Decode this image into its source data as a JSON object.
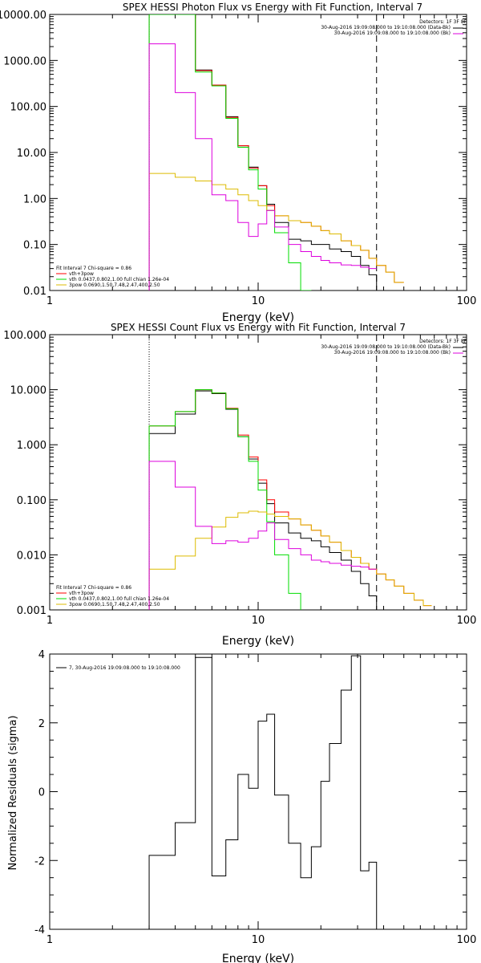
{
  "chart_data": [
    {
      "type": "line",
      "title": "SPEX HESSI Photon Flux vs Energy with Fit Function, Interval 7",
      "xlabel": "Energy (keV)",
      "ylabel": "",
      "xscale": "log",
      "yscale": "log",
      "xlim": [
        1,
        100
      ],
      "ylim": [
        0.01,
        10000
      ],
      "x_ticks": [
        "1",
        "10",
        "100"
      ],
      "y_ticks": [
        "0.01",
        "0.10",
        "1.00",
        "10.00",
        "100.00",
        "1000.00",
        "10000.00"
      ],
      "top_right_lines": [
        "Detectors: 1F 3F 8F",
        "30-Aug-2016 19:09:08.000 to 19:10:08.000 (Data-Bk)",
        "30-Aug-2016 19:09:08.000 to 19:10:08.000 (Bk)"
      ],
      "fit_lines": [
        "Fit Interval 7   Chi-square = 0.86",
        "vth+3pow",
        "vth 0.0437,0.802,1.00  full chian 1.26e-04",
        "3pow 0.0690,1.50,7.48,2.47,400,2.50"
      ],
      "vlines": [
        3.0,
        37.0
      ],
      "x_edges": [
        3,
        4,
        5,
        6,
        7,
        8,
        9,
        10,
        11,
        12,
        14,
        16,
        18,
        20,
        22,
        25,
        28,
        31,
        34,
        37,
        41,
        45,
        50
      ],
      "series": [
        {
          "name": "data",
          "color": "#000000",
          "values": [
            10000,
            10000,
            620,
            290,
            60,
            14,
            4.8,
            1.9,
            0.75,
            0.3,
            0.13,
            0.12,
            0.1,
            0.1,
            0.08,
            0.07,
            0.055,
            0.035,
            0.022,
            null,
            null,
            null
          ]
        },
        {
          "name": "vth+3pow",
          "color": "#ff0000",
          "values": [
            10000,
            10000,
            600,
            290,
            58,
            14,
            4.6,
            1.9,
            0.7,
            0.42,
            0.33,
            0.3,
            0.25,
            0.2,
            0.17,
            0.12,
            0.095,
            0.075,
            0.05,
            0.035,
            0.025,
            0.015
          ]
        },
        {
          "name": "vth",
          "color": "#00dd00",
          "values": [
            10000,
            10000,
            560,
            280,
            55,
            13,
            4.2,
            1.6,
            0.55,
            0.18,
            0.04,
            0.01,
            null,
            null,
            null,
            null,
            null,
            null,
            null,
            null,
            null,
            null
          ]
        },
        {
          "name": "3pow",
          "color": "#ddbb00",
          "values": [
            3.5,
            2.9,
            2.4,
            2.0,
            1.6,
            1.2,
            0.9,
            0.7,
            0.55,
            0.42,
            0.33,
            0.3,
            0.25,
            0.2,
            0.17,
            0.12,
            0.095,
            0.075,
            0.05,
            0.035,
            0.025,
            0.015
          ]
        },
        {
          "name": "Bk",
          "color": "#dd00dd",
          "values": [
            2300,
            200,
            20,
            1.2,
            0.9,
            0.3,
            0.15,
            0.28,
            0.55,
            0.24,
            0.1,
            0.07,
            0.055,
            0.045,
            0.04,
            0.036,
            0.035,
            0.032,
            0.03,
            null,
            null,
            null
          ]
        }
      ]
    },
    {
      "type": "line",
      "title": "SPEX HESSI Count Flux vs Energy with Fit Function, Interval 7",
      "xlabel": "Energy (keV)",
      "ylabel": "",
      "xscale": "log",
      "yscale": "log",
      "xlim": [
        1,
        100
      ],
      "ylim": [
        0.001,
        100
      ],
      "x_ticks": [
        "1",
        "10",
        "100"
      ],
      "y_ticks": [
        "0.001",
        "0.010",
        "0.100",
        "1.000",
        "10.000",
        "100.000"
      ],
      "top_right_lines": [
        "Detectors: 1F 3F 8F",
        "30-Aug-2016 19:09:08.000 to 19:10:08.000 (Data-Bk)",
        "30-Aug-2016 19:09:08.000 to 19:10:08.000 (Bk)"
      ],
      "fit_lines": [
        "Fit Interval 7   Chi-square = 0.86",
        "vth+3pow",
        "vth 0.0437,0.802,1.00  full chian 1.26e-04",
        "3pow 0.0690,1.50,7.48,2.47,400,2.50"
      ],
      "vlines": [
        3.0,
        37.0
      ],
      "x_edges": [
        3,
        4,
        5,
        6,
        7,
        8,
        9,
        10,
        11,
        12,
        14,
        16,
        18,
        20,
        22,
        25,
        28,
        31,
        34,
        37,
        41,
        45,
        50,
        56,
        62,
        68
      ],
      "series": [
        {
          "name": "data",
          "color": "#000000",
          "values": [
            1.6,
            3.6,
            9.5,
            8.5,
            4.4,
            1.4,
            0.55,
            0.2,
            0.085,
            0.038,
            0.025,
            0.02,
            0.018,
            0.014,
            0.011,
            0.008,
            0.005,
            0.003,
            0.0018,
            null,
            null,
            null,
            null,
            null,
            null
          ]
        },
        {
          "name": "vth+3pow",
          "color": "#ff0000",
          "values": [
            2.2,
            4.0,
            10,
            8.7,
            4.6,
            1.5,
            0.6,
            0.23,
            0.1,
            0.06,
            0.045,
            0.035,
            0.028,
            0.022,
            0.017,
            0.012,
            0.009,
            0.007,
            0.0055,
            0.0045,
            0.0035,
            0.0027,
            0.002,
            0.0015,
            0.0012
          ]
        },
        {
          "name": "vth",
          "color": "#00dd00",
          "values": [
            2.2,
            4.0,
            10,
            8.7,
            4.5,
            1.4,
            0.5,
            0.15,
            0.04,
            0.01,
            0.002,
            null,
            null,
            null,
            null,
            null,
            null,
            null,
            null,
            null,
            null,
            null,
            null,
            null,
            null
          ]
        },
        {
          "name": "3pow",
          "color": "#ddbb00",
          "values": [
            0.0055,
            0.0095,
            0.02,
            0.032,
            0.048,
            0.058,
            0.062,
            0.06,
            0.055,
            0.05,
            0.045,
            0.035,
            0.028,
            0.022,
            0.017,
            0.012,
            0.009,
            0.007,
            0.0055,
            0.0045,
            0.0035,
            0.0027,
            0.002,
            0.0015,
            0.0012
          ]
        },
        {
          "name": "Bk",
          "color": "#dd00dd",
          "values": [
            0.5,
            0.17,
            0.033,
            0.016,
            0.018,
            0.017,
            0.02,
            0.027,
            0.038,
            0.019,
            0.013,
            0.01,
            0.008,
            0.0075,
            0.007,
            0.0065,
            0.0062,
            0.006,
            0.0055,
            null,
            null,
            null,
            null,
            null,
            null
          ]
        }
      ]
    },
    {
      "type": "line",
      "title": "",
      "xlabel": "Energy (keV)",
      "ylabel": "Normalized Residuals (sigma)",
      "xscale": "log",
      "yscale": "linear",
      "xlim": [
        1,
        100
      ],
      "ylim": [
        -4,
        4
      ],
      "x_ticks": [
        "1",
        "10",
        "100"
      ],
      "y_ticks": [
        "-4",
        "-2",
        "0",
        "2",
        "4"
      ],
      "legend": "7, 30-Aug-2016 19:09:08.000 to 19:10:08.000",
      "x_edges": [
        3,
        4,
        5,
        6,
        7,
        8,
        9,
        10,
        11,
        12,
        14,
        16,
        18,
        20,
        22,
        25,
        28,
        31,
        34,
        37
      ],
      "series": [
        {
          "name": "residuals",
          "color": "#000000",
          "values": [
            -1.85,
            -0.9,
            3.9,
            -2.45,
            -1.4,
            0.5,
            0.1,
            2.05,
            2.25,
            -0.1,
            -1.5,
            -2.5,
            -1.6,
            0.3,
            1.4,
            2.95,
            3.95,
            -2.3,
            -2.05
          ]
        }
      ]
    }
  ]
}
